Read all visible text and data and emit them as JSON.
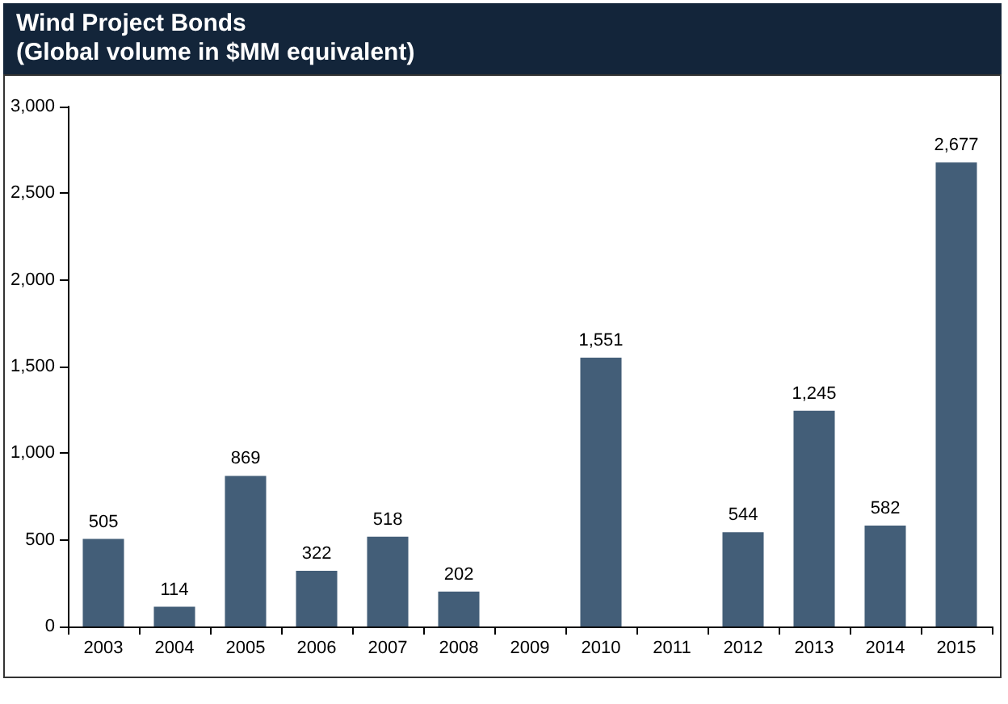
{
  "chart_data": {
    "type": "bar",
    "title": "Wind Project Bonds",
    "subtitle": "(Global volume in $MM equivalent)",
    "categories": [
      "2003",
      "2004",
      "2005",
      "2006",
      "2007",
      "2008",
      "2009",
      "2010",
      "2011",
      "2012",
      "2013",
      "2014",
      "2015"
    ],
    "values": [
      505,
      114,
      869,
      322,
      518,
      202,
      null,
      1551,
      null,
      544,
      1245,
      582,
      2677
    ],
    "value_labels": [
      "505",
      "114",
      "869",
      "322",
      "518",
      "202",
      null,
      "1,551",
      null,
      "544",
      "1,245",
      "582",
      "2,677"
    ],
    "color": "#435e78",
    "ylim": [
      0,
      3000
    ],
    "yticks": [
      0,
      500,
      {
        "value": 1000,
        "label": "1,000"
      },
      {
        "value": 1500,
        "label": "1,500"
      },
      {
        "value": 2000,
        "label": "2,000"
      },
      {
        "value": 2500,
        "label": "2,500"
      },
      {
        "value": 3000,
        "label": "3,000"
      }
    ],
    "grid": false
  }
}
